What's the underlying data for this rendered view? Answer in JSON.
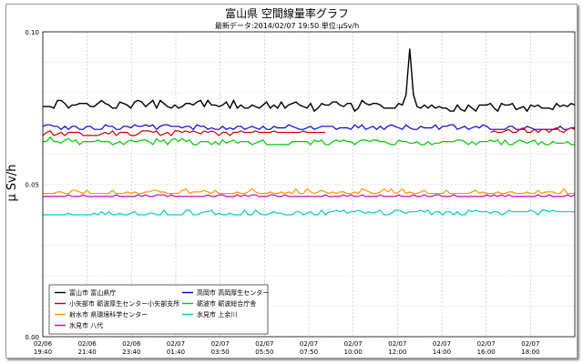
{
  "chart_data": {
    "type": "line",
    "title": "富山県 空間線量率グラフ",
    "subtitle": "最新データ:2014/02/07 19:50 単位:μSv/h",
    "ylabel": "μ Sv/h",
    "xlabel": "",
    "ylim": [
      0.0,
      0.1
    ],
    "y_ticks": [
      "0.00",
      "0.05",
      "0.10"
    ],
    "x_tick_labels": [
      {
        "date": "02/06",
        "time": "19:40"
      },
      {
        "date": "02/06",
        "time": "21:40"
      },
      {
        "date": "02/06",
        "time": "23:40"
      },
      {
        "date": "02/07",
        "time": "01:40"
      },
      {
        "date": "02/07",
        "time": "03:50"
      },
      {
        "date": "02/07",
        "time": "05:50"
      },
      {
        "date": "02/07",
        "time": "07:50"
      },
      {
        "date": "02/07",
        "time": "10:00"
      },
      {
        "date": "02/07",
        "time": "12:00"
      },
      {
        "date": "02/07",
        "time": "14:00"
      },
      {
        "date": "02/07",
        "time": "16:00"
      },
      {
        "date": "02/07",
        "time": "18:00"
      }
    ],
    "x_range_minutes": [
      0,
      1450
    ],
    "grid": true,
    "legend_position": "bottom-left",
    "series": [
      {
        "name": "富山市 富山県庁",
        "color": "#000000",
        "base": 0.076,
        "jitter": 0.0012,
        "drift": -0.001,
        "spikes": [
          {
            "x": 1000,
            "y": 0.0945
          }
        ]
      },
      {
        "name": "高岡市 高岡厚生センター",
        "color": "#0000cc",
        "base": 0.0688,
        "jitter": 0.0008,
        "drift": -0.0006
      },
      {
        "name": "小矢部市 砺波厚生センター小矢部支所",
        "color": "#cc0000",
        "base": 0.0665,
        "jitter": 0.0005,
        "drift": 0.001,
        "gap": [
          770,
          1220
        ]
      },
      {
        "name": "砺波市 砺波総合庁舎",
        "color": "#00cc00",
        "base": 0.064,
        "jitter": 0.0008,
        "drift": -0.0005
      },
      {
        "name": "射水市 県環境科学センター",
        "color": "#ff9900",
        "base": 0.0472,
        "jitter": 0.0005,
        "drift": 0.0
      },
      {
        "name": "氷見市 八代",
        "color": "#cc00cc",
        "base": 0.046,
        "jitter": 0.0003,
        "drift": 0.0
      },
      {
        "name": "氷見市 上余川",
        "color": "#00cccc",
        "base": 0.0402,
        "jitter": 0.0003,
        "drift": 0.0005
      }
    ]
  },
  "legend": {
    "layout_order": [
      0,
      1,
      2,
      3,
      4,
      6,
      5
    ]
  }
}
